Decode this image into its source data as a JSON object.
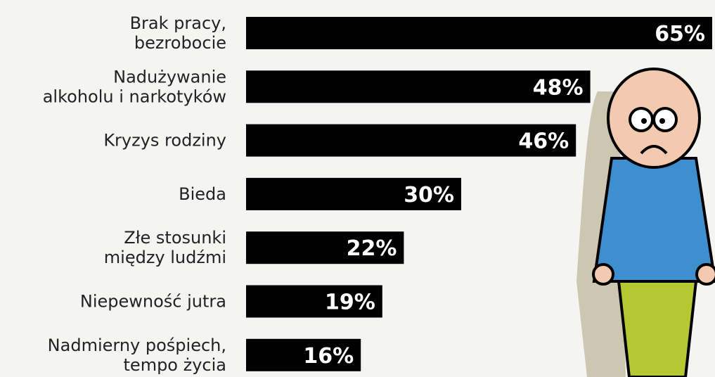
{
  "chart_data": {
    "type": "bar",
    "orientation": "horizontal",
    "categories": [
      "Brak pracy,\nbezrobocie",
      "Nadużywanie\nalkoholu i narkotyków",
      "Kryzys rodziny",
      "Bieda",
      "Złe stosunki\nmiędzy ludźmi",
      "Niepewność jutra",
      "Nadmierny pośpiech,\ntempo życia"
    ],
    "values": [
      65,
      48,
      46,
      30,
      22,
      19,
      16
    ],
    "value_labels": [
      "65%",
      "48%",
      "46%",
      "30%",
      "22%",
      "19%",
      "16%"
    ],
    "color": "#000000"
  }
}
